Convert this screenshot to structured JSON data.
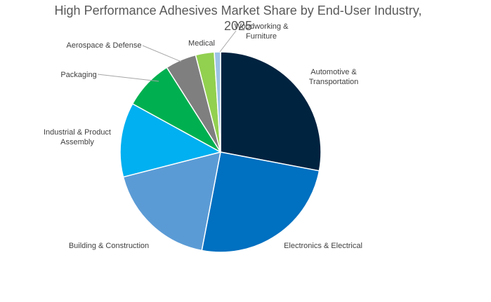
{
  "chart_data": {
    "type": "pie",
    "title": "High Performance Adhesives Market Share by End-User Industry, 2025",
    "title_lines": [
      "High Performance Adhesives Market Share by End-User Industry,",
      "2025"
    ],
    "start": "12 o'clock",
    "direction": "clockwise",
    "slices": [
      {
        "name": "Automotive & Transportation",
        "label_lines": [
          "Automotive &",
          "Transportation"
        ],
        "value": 28,
        "color": "#002340"
      },
      {
        "name": "Electronics & Electrical",
        "label_lines": [
          "Electronics & Electrical"
        ],
        "value": 25,
        "color": "#0070C0"
      },
      {
        "name": "Building & Construction",
        "label_lines": [
          "Building & Construction"
        ],
        "value": 18,
        "color": "#5B9BD5"
      },
      {
        "name": "Industrial & Product Assembly",
        "label_lines": [
          "Industrial & Product",
          "Assembly"
        ],
        "value": 12,
        "color": "#00B0F0"
      },
      {
        "name": "Packaging",
        "label_lines": [
          "Packaging"
        ],
        "value": 8,
        "color": "#00B050"
      },
      {
        "name": "Aerospace & Defense",
        "label_lines": [
          "Aerospace & Defense"
        ],
        "value": 5,
        "color": "#7F7F7F"
      },
      {
        "name": "Medical",
        "label_lines": [
          "Medical"
        ],
        "value": 3,
        "color": "#92D050"
      },
      {
        "name": "Woodworking & Furniture",
        "label_lines": [
          "Woodworking &",
          "Furniture"
        ],
        "value": 1,
        "color": "#9DC3E6"
      }
    ]
  }
}
